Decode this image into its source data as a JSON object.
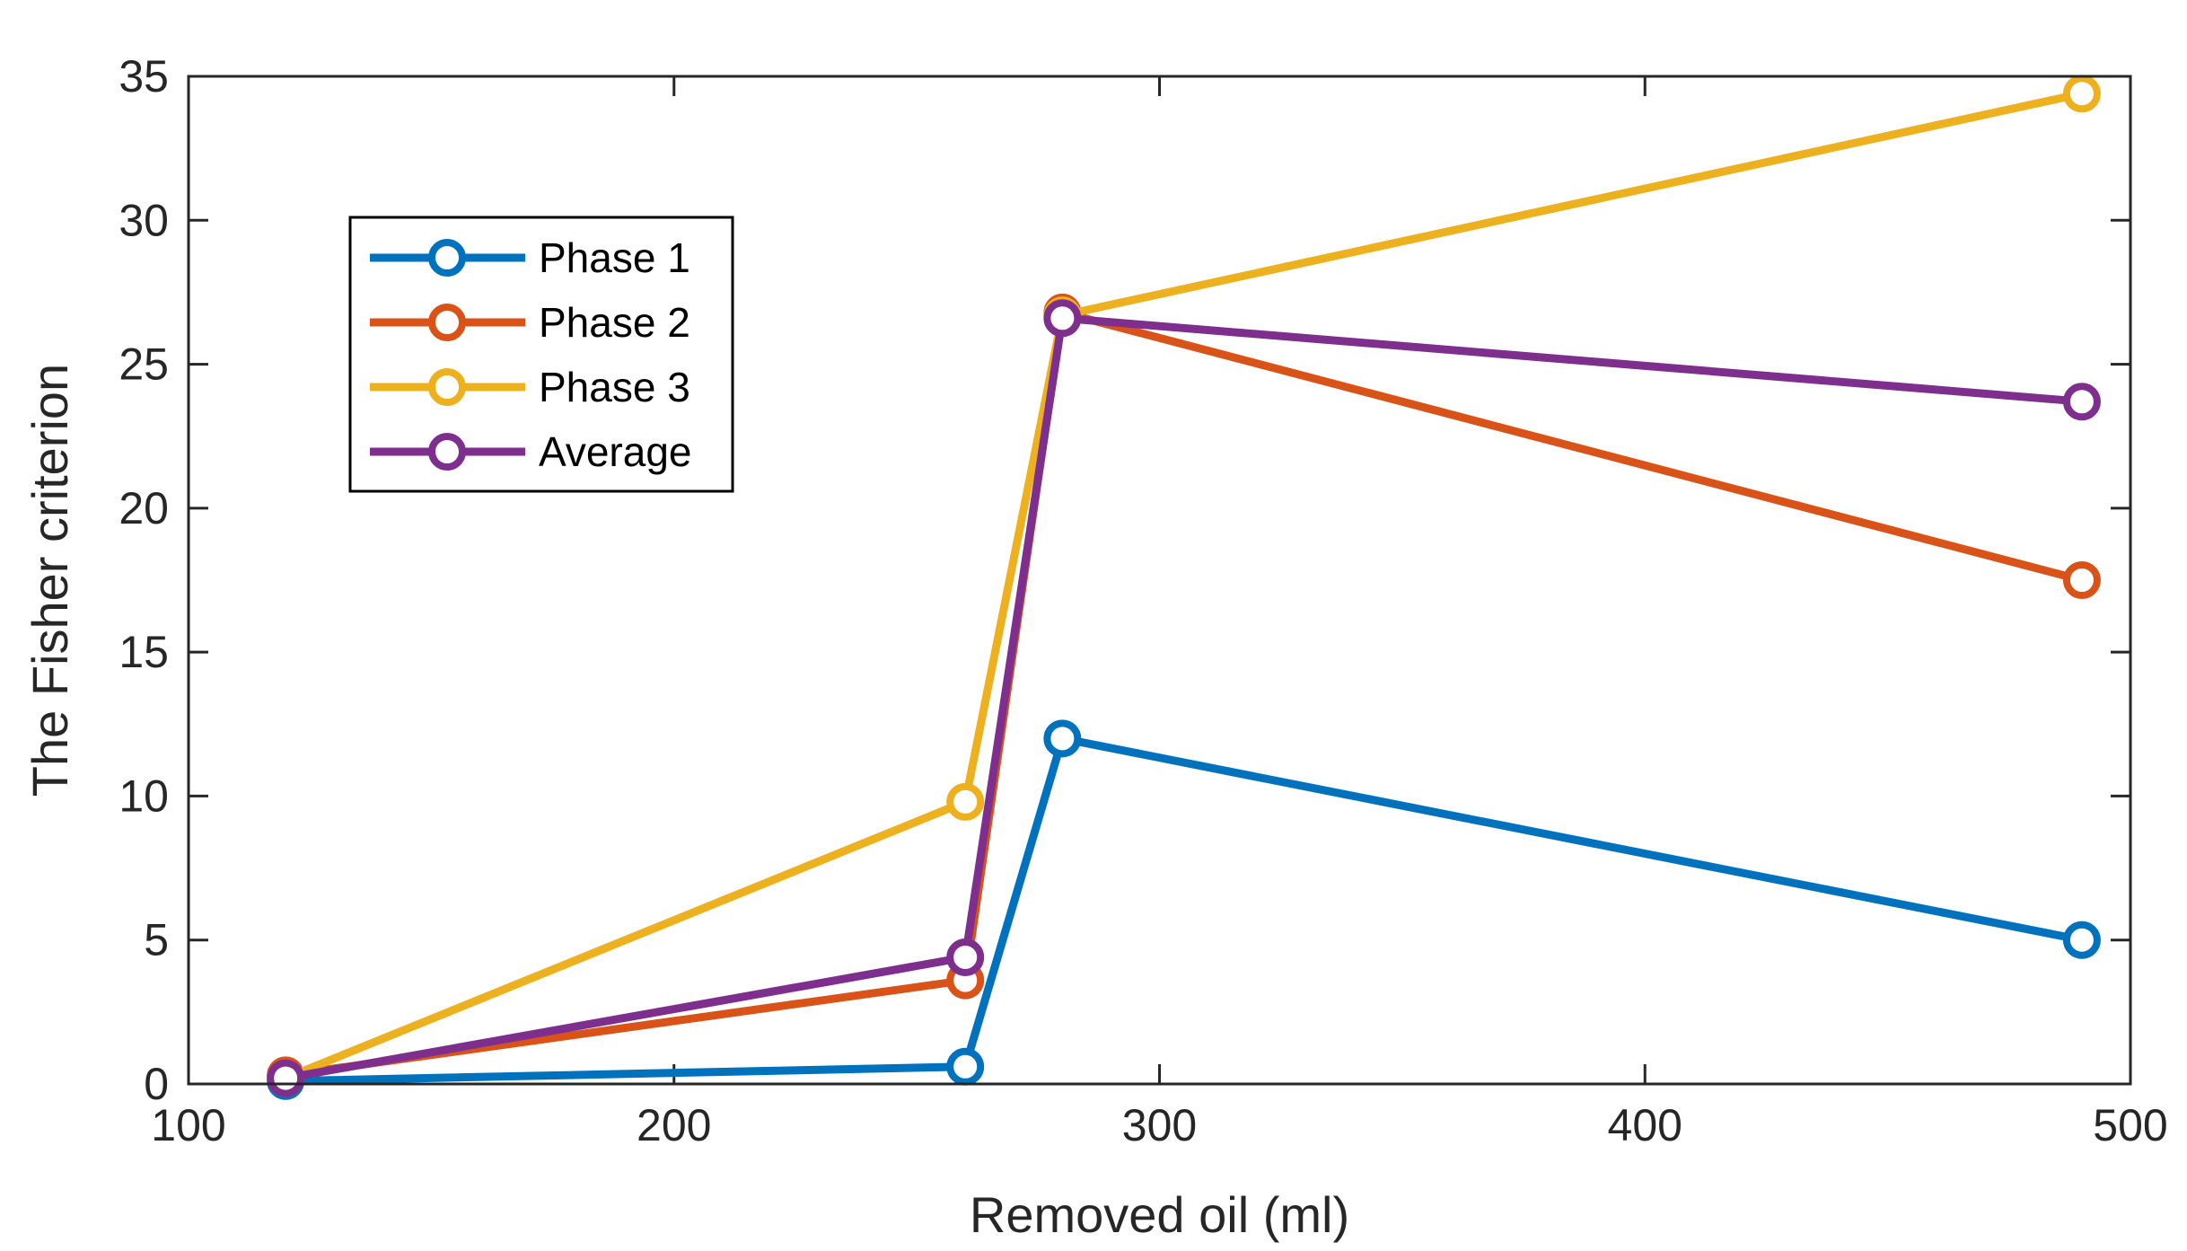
{
  "chart_data": {
    "type": "line",
    "title": "",
    "xlabel": "Removed oil (ml)",
    "ylabel": "The Fisher criterion",
    "xlim": [
      100,
      500
    ],
    "ylim": [
      0,
      35
    ],
    "xticks": [
      100,
      200,
      300,
      400,
      500
    ],
    "yticks": [
      0,
      5,
      10,
      15,
      20,
      25,
      30,
      35
    ],
    "xtick_labels": [
      "100",
      "200",
      "300",
      "400",
      "500"
    ],
    "ytick_labels": [
      "0",
      "5",
      "10",
      "15",
      "20",
      "25",
      "30",
      "35"
    ],
    "grid": false,
    "legend_position": "upper-left",
    "x": [
      120,
      260,
      280,
      490
    ],
    "series": [
      {
        "name": "Phase 1",
        "color": "#0072BD",
        "values": [
          0.1,
          0.6,
          12.0,
          5.0
        ]
      },
      {
        "name": "Phase 2",
        "color": "#D95319",
        "values": [
          0.3,
          3.6,
          26.8,
          17.5
        ]
      },
      {
        "name": "Phase 3",
        "color": "#EDB120",
        "values": [
          0.2,
          9.8,
          26.7,
          34.4
        ]
      },
      {
        "name": "Average",
        "color": "#7E2F8E",
        "values": [
          0.2,
          4.4,
          26.6,
          23.7
        ]
      }
    ]
  }
}
